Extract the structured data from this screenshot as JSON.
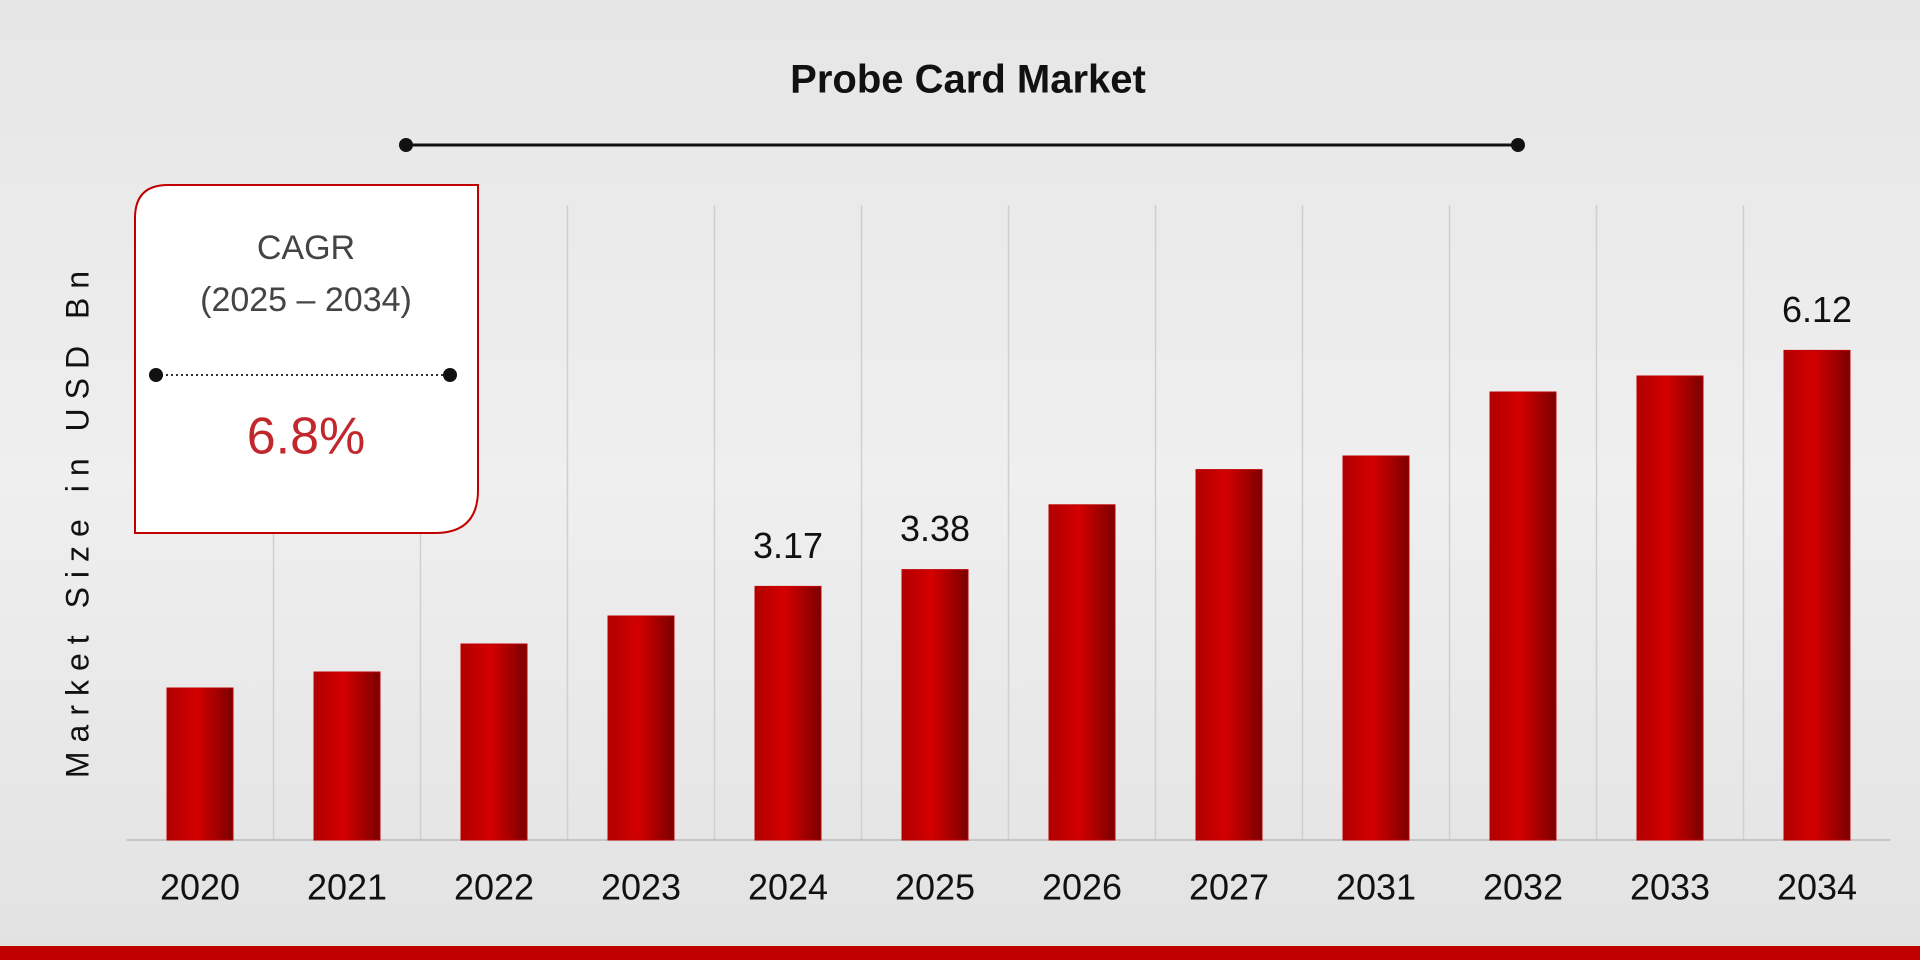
{
  "chart_data": {
    "type": "bar",
    "title": "Probe Card Market",
    "y_label": "Market Size in USD Bn",
    "categories": [
      "2020",
      "2021",
      "2022",
      "2023",
      "2024",
      "2025",
      "2026",
      "2027",
      "2031",
      "2032",
      "2033",
      "2034"
    ],
    "values": [
      1.9,
      2.1,
      2.45,
      2.8,
      3.17,
      3.38,
      4.19,
      4.63,
      4.8,
      5.6,
      5.8,
      6.12
    ],
    "value_labels": [
      null,
      null,
      null,
      null,
      "3.17",
      "3.38",
      null,
      null,
      null,
      null,
      null,
      "6.12"
    ],
    "color": "#c00000",
    "ylim": [
      0,
      8
    ],
    "annotations": {
      "cagr_title": "CAGR",
      "cagr_period": "(2025 – 2034)",
      "cagr_value": "6.8%"
    }
  }
}
